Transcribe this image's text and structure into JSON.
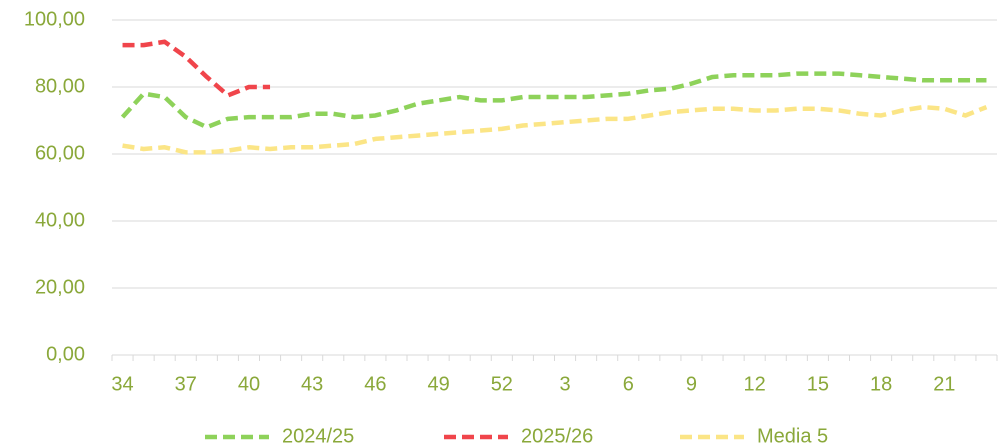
{
  "chart_data": {
    "type": "line",
    "categories": [
      "34",
      null,
      null,
      "37",
      null,
      null,
      "40",
      null,
      null,
      "43",
      null,
      null,
      "46",
      null,
      null,
      "49",
      null,
      null,
      "52",
      null,
      null,
      "3",
      null,
      null,
      "6",
      null,
      null,
      "9",
      null,
      null,
      "12",
      null,
      null,
      "15",
      null,
      null,
      "18",
      null,
      null,
      "21",
      null,
      null
    ],
    "series": [
      {
        "name": "2024/25",
        "color": "#8ed25a",
        "values": [
          71,
          78,
          77,
          71,
          68,
          70.5,
          71,
          71,
          71,
          72,
          72,
          71,
          71.5,
          73,
          75,
          76,
          77,
          76,
          76,
          77,
          77,
          77,
          77,
          77.5,
          78,
          79,
          79.5,
          81,
          83,
          83.5,
          83.5,
          83.5,
          84,
          84,
          84,
          83.5,
          83,
          82.5,
          82,
          82,
          82,
          82
        ]
      },
      {
        "name": "2025/26",
        "color": "#f0454b",
        "values": [
          92.5,
          92.5,
          93.5,
          89,
          83,
          77.5,
          80,
          80,
          null,
          null,
          null,
          null,
          null,
          null,
          null,
          null,
          null,
          null,
          null,
          null,
          null,
          null,
          null,
          null,
          null,
          null,
          null,
          null,
          null,
          null,
          null,
          null,
          null,
          null,
          null,
          null,
          null,
          null,
          null,
          null,
          null,
          null
        ]
      },
      {
        "name": "Media 5",
        "color": "#fbe586",
        "values": [
          62.5,
          61.5,
          62,
          60.5,
          60.5,
          61,
          62,
          61.5,
          62,
          62,
          62.5,
          63,
          64.5,
          65,
          65.5,
          66,
          66.5,
          67,
          67.5,
          68.5,
          69,
          69.5,
          70,
          70.5,
          70.5,
          71.5,
          72.5,
          73,
          73.5,
          73.5,
          73,
          73,
          73.5,
          73.5,
          73,
          72,
          71.5,
          73,
          74,
          73.5,
          71.5,
          74
        ]
      }
    ],
    "ylim": [
      0,
      100
    ],
    "yticks": [
      {
        "value": 0,
        "label": "0,00"
      },
      {
        "value": 20,
        "label": "20,00"
      },
      {
        "value": 40,
        "label": "40,00"
      },
      {
        "value": 60,
        "label": "60,00"
      },
      {
        "value": 80,
        "label": "80,00"
      },
      {
        "value": 100,
        "label": "100,00"
      }
    ],
    "grid": true,
    "legend": "bottom"
  }
}
